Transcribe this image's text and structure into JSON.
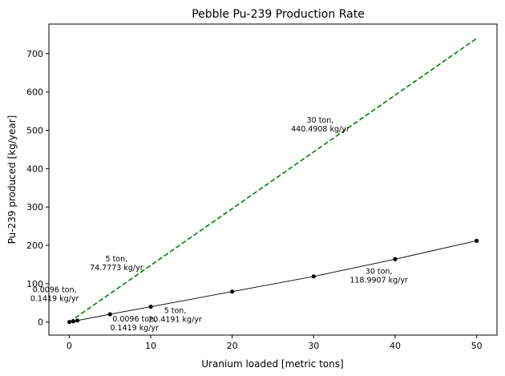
{
  "chart_data": {
    "type": "line",
    "title": "Pebble Pu-239 Production Rate",
    "xlabel": "Uranium loaded [metric tons]",
    "ylabel": "Pu-239 produced [kg/year]",
    "xlim": [
      -2.5,
      52.5
    ],
    "ylim": [
      -34,
      777
    ],
    "xticks": [
      0,
      10,
      20,
      30,
      40,
      50
    ],
    "yticks": [
      0,
      100,
      200,
      300,
      400,
      500,
      600,
      700
    ],
    "grid": false,
    "series": [
      {
        "style": "dashed",
        "color": "#008000",
        "x": [
          0.0096,
          50
        ],
        "y": [
          0.1419,
          739.5
        ]
      },
      {
        "style": "solid-with-markers",
        "color": "#000000",
        "x": [
          0.0096,
          0.5,
          1,
          5,
          10,
          20,
          30,
          40,
          50
        ],
        "y": [
          0.1419,
          2.0,
          4.0,
          20.4191,
          40.0,
          79.5,
          118.9907,
          164.0,
          212.0
        ]
      }
    ],
    "annotations": [
      {
        "lines": [
          "0.0096 ton,",
          "0.1419 kg/yr"
        ],
        "x": -1.8,
        "y": 78
      },
      {
        "lines": [
          "5 ton,",
          "74.7773 kg/yr"
        ],
        "x": 5.8,
        "y": 158
      },
      {
        "lines": [
          "30 ton,",
          "440.4908 kg/yr"
        ],
        "x": 30.8,
        "y": 520
      },
      {
        "lines": [
          "0.0096 ton,",
          "0.1419 kg/yr"
        ],
        "x": 8.0,
        "y": 2
      },
      {
        "lines": [
          "5 ton,",
          "20.4191 kg/yr"
        ],
        "x": 13.0,
        "y": 23
      },
      {
        "lines": [
          "30 ton,",
          "118.9907 kg/yr"
        ],
        "x": 38.0,
        "y": 126
      }
    ]
  }
}
